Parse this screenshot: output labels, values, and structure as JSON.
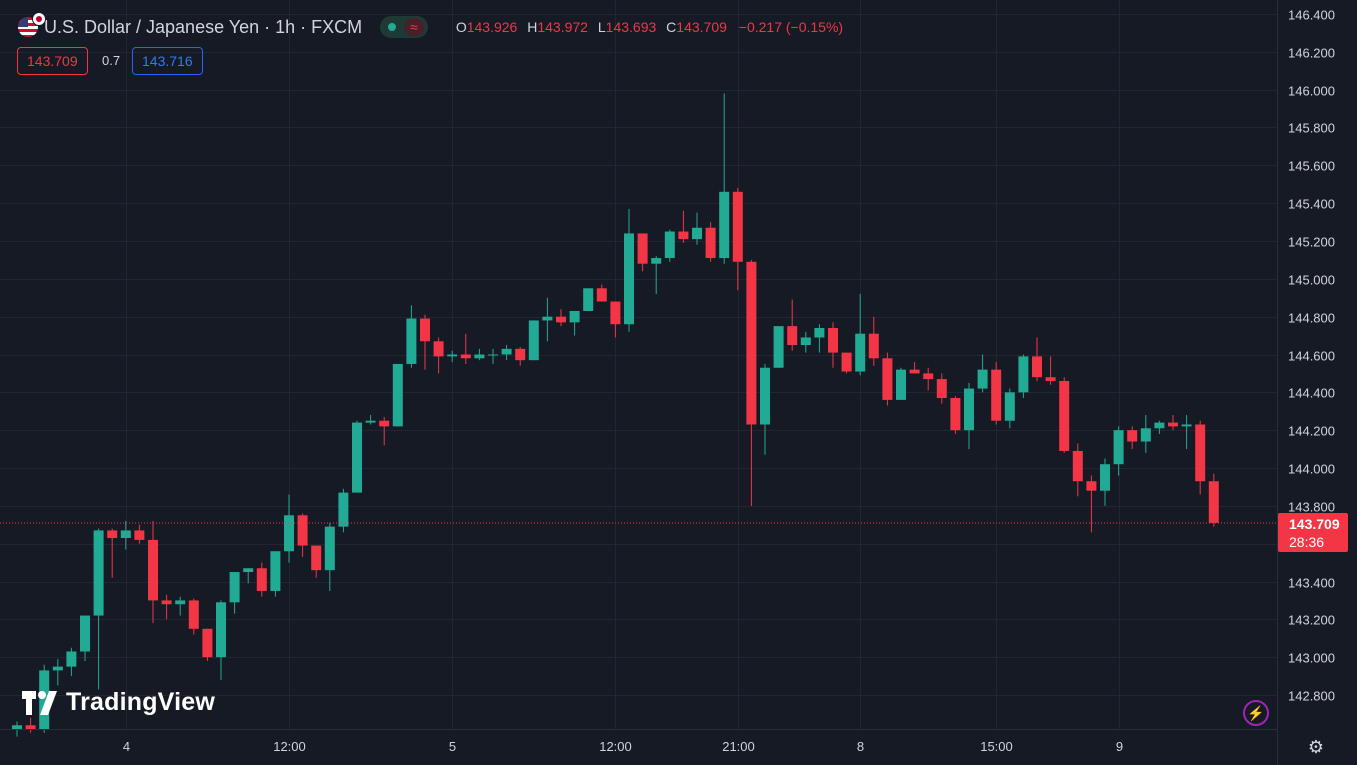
{
  "header": {
    "symbol_title": "U.S. Dollar / Japanese Yen · 1h · FXCM",
    "status_symbol": "≈",
    "ohlc": {
      "o_label": "O",
      "o_value": "143.926",
      "h_label": "H",
      "h_value": "143.972",
      "l_label": "L",
      "l_value": "143.693",
      "c_label": "C",
      "c_value": "143.709",
      "change": "−0.217 (−0.15%)"
    },
    "bid": "143.709",
    "spread": "0.7",
    "ask": "143.716"
  },
  "price_label": {
    "price": "143.709",
    "countdown": "28:36"
  },
  "branding": {
    "logo_text": "TradingView"
  },
  "icons": {
    "flag": "usd-jpy-flag-icon",
    "lightning": "lightning-icon",
    "settings": "gear-icon",
    "status": "market-open-dot-icon"
  },
  "colors": {
    "up": "#22ab94",
    "down": "#f23645",
    "background": "#161a25",
    "grid": "#232632",
    "text": "#d1d4dc",
    "accent": "#2962ff"
  },
  "chart_data": {
    "type": "candlestick",
    "symbol": "USDJPY",
    "interval": "1h",
    "y_axis": {
      "ticks": [
        "146.400",
        "146.200",
        "146.000",
        "145.800",
        "145.600",
        "145.400",
        "145.200",
        "145.000",
        "144.800",
        "144.600",
        "144.400",
        "144.200",
        "144.000",
        "143.800",
        "143.600",
        "143.400",
        "143.200",
        "143.000",
        "142.800"
      ],
      "range": [
        142.72,
        146.5
      ]
    },
    "x_axis": {
      "ticks": [
        {
          "label": "4",
          "bar": 8
        },
        {
          "label": "12:00",
          "bar": 20
        },
        {
          "label": "5",
          "bar": 32
        },
        {
          "label": "12:00",
          "bar": 44
        },
        {
          "label": "21:00",
          "bar": 53
        },
        {
          "label": "8",
          "bar": 62
        },
        {
          "label": "15:00",
          "bar": 72
        },
        {
          "label": "9",
          "bar": 81
        }
      ],
      "bar_count": 91
    },
    "last_price": 143.709,
    "candles": [
      [
        142.62,
        142.66,
        142.58,
        142.64
      ],
      [
        142.64,
        142.68,
        142.6,
        142.62
      ],
      [
        142.62,
        142.96,
        142.6,
        142.93
      ],
      [
        142.93,
        142.99,
        142.85,
        142.95
      ],
      [
        142.95,
        143.05,
        142.9,
        143.03
      ],
      [
        143.03,
        143.2,
        142.98,
        143.22
      ],
      [
        143.22,
        143.68,
        142.83,
        143.67
      ],
      [
        143.67,
        143.68,
        143.42,
        143.63
      ],
      [
        143.63,
        143.72,
        143.57,
        143.67
      ],
      [
        143.67,
        143.7,
        143.6,
        143.62
      ],
      [
        143.62,
        143.72,
        143.18,
        143.3
      ],
      [
        143.3,
        143.33,
        143.2,
        143.28
      ],
      [
        143.28,
        143.32,
        143.22,
        143.3
      ],
      [
        143.3,
        143.31,
        143.12,
        143.15
      ],
      [
        143.15,
        143.15,
        142.98,
        143.0
      ],
      [
        143.0,
        143.3,
        142.88,
        143.29
      ],
      [
        143.29,
        143.44,
        143.23,
        143.45
      ],
      [
        143.45,
        143.47,
        143.39,
        143.47
      ],
      [
        143.47,
        143.5,
        143.32,
        143.35
      ],
      [
        143.35,
        143.56,
        143.32,
        143.56
      ],
      [
        143.56,
        143.86,
        143.5,
        143.75
      ],
      [
        143.75,
        143.76,
        143.53,
        143.59
      ],
      [
        143.59,
        143.58,
        143.42,
        143.46
      ],
      [
        143.46,
        143.71,
        143.35,
        143.69
      ],
      [
        143.69,
        143.89,
        143.66,
        143.87
      ],
      [
        143.87,
        144.25,
        143.87,
        144.24
      ],
      [
        144.24,
        144.28,
        144.23,
        144.25
      ],
      [
        144.25,
        144.27,
        144.12,
        144.22
      ],
      [
        144.22,
        144.55,
        144.22,
        144.55
      ],
      [
        144.55,
        144.86,
        144.53,
        144.79
      ],
      [
        144.79,
        144.81,
        144.52,
        144.67
      ],
      [
        144.67,
        144.69,
        144.5,
        144.59
      ],
      [
        144.59,
        144.62,
        144.56,
        144.6
      ],
      [
        144.6,
        144.71,
        144.55,
        144.58
      ],
      [
        144.58,
        144.63,
        144.57,
        144.6
      ],
      [
        144.6,
        144.63,
        144.55,
        144.6
      ],
      [
        144.6,
        144.65,
        144.57,
        144.63
      ],
      [
        144.63,
        144.64,
        144.54,
        144.57
      ],
      [
        144.57,
        144.78,
        144.57,
        144.78
      ],
      [
        144.78,
        144.9,
        144.67,
        144.8
      ],
      [
        144.8,
        144.84,
        144.75,
        144.77
      ],
      [
        144.77,
        144.83,
        144.7,
        144.83
      ],
      [
        144.83,
        144.95,
        144.83,
        144.95
      ],
      [
        144.95,
        144.97,
        144.88,
        144.88
      ],
      [
        144.88,
        144.87,
        144.69,
        144.76
      ],
      [
        144.76,
        145.37,
        144.72,
        145.24
      ],
      [
        145.24,
        145.22,
        145.04,
        145.08
      ],
      [
        145.08,
        145.12,
        144.92,
        145.11
      ],
      [
        145.11,
        145.26,
        145.09,
        145.25
      ],
      [
        145.25,
        145.36,
        145.19,
        145.21
      ],
      [
        145.21,
        145.35,
        145.18,
        145.27
      ],
      [
        145.27,
        145.3,
        145.09,
        145.11
      ],
      [
        145.11,
        145.98,
        145.08,
        145.46
      ],
      [
        145.46,
        145.48,
        144.94,
        145.09
      ],
      [
        145.09,
        145.1,
        143.8,
        144.23
      ],
      [
        144.23,
        144.55,
        144.07,
        144.53
      ],
      [
        144.53,
        144.74,
        144.53,
        144.75
      ],
      [
        144.75,
        144.89,
        144.62,
        144.65
      ],
      [
        144.65,
        144.72,
        144.61,
        144.69
      ],
      [
        144.69,
        144.76,
        144.61,
        144.74
      ],
      [
        144.74,
        144.77,
        144.53,
        144.61
      ],
      [
        144.61,
        144.6,
        144.5,
        144.51
      ],
      [
        144.51,
        144.92,
        144.49,
        144.71
      ],
      [
        144.71,
        144.8,
        144.54,
        144.58
      ],
      [
        144.58,
        144.61,
        144.33,
        144.36
      ],
      [
        144.36,
        144.53,
        144.36,
        144.52
      ],
      [
        144.52,
        144.56,
        144.5,
        144.5
      ],
      [
        144.5,
        144.53,
        144.41,
        144.47
      ],
      [
        144.47,
        144.5,
        144.34,
        144.37
      ],
      [
        144.37,
        144.38,
        144.18,
        144.2
      ],
      [
        144.2,
        144.45,
        144.1,
        144.42
      ],
      [
        144.42,
        144.6,
        144.4,
        144.52
      ],
      [
        144.52,
        144.56,
        144.23,
        144.25
      ],
      [
        144.25,
        144.42,
        144.21,
        144.4
      ],
      [
        144.4,
        144.6,
        144.37,
        144.59
      ],
      [
        144.59,
        144.69,
        144.46,
        144.48
      ],
      [
        144.48,
        144.59,
        144.44,
        144.46
      ],
      [
        144.46,
        144.48,
        144.08,
        144.09
      ],
      [
        144.09,
        144.13,
        143.85,
        143.93
      ],
      [
        143.93,
        143.96,
        143.66,
        143.88
      ],
      [
        143.88,
        144.05,
        143.8,
        144.02
      ],
      [
        144.02,
        144.22,
        143.96,
        144.2
      ],
      [
        144.2,
        144.22,
        144.1,
        144.14
      ],
      [
        144.14,
        144.28,
        144.08,
        144.21
      ],
      [
        144.21,
        144.25,
        144.18,
        144.24
      ],
      [
        144.24,
        144.28,
        144.2,
        144.22
      ],
      [
        144.22,
        144.28,
        144.1,
        144.23
      ],
      [
        144.23,
        144.25,
        143.86,
        143.93
      ],
      [
        143.93,
        143.97,
        143.69,
        143.71
      ]
    ]
  }
}
